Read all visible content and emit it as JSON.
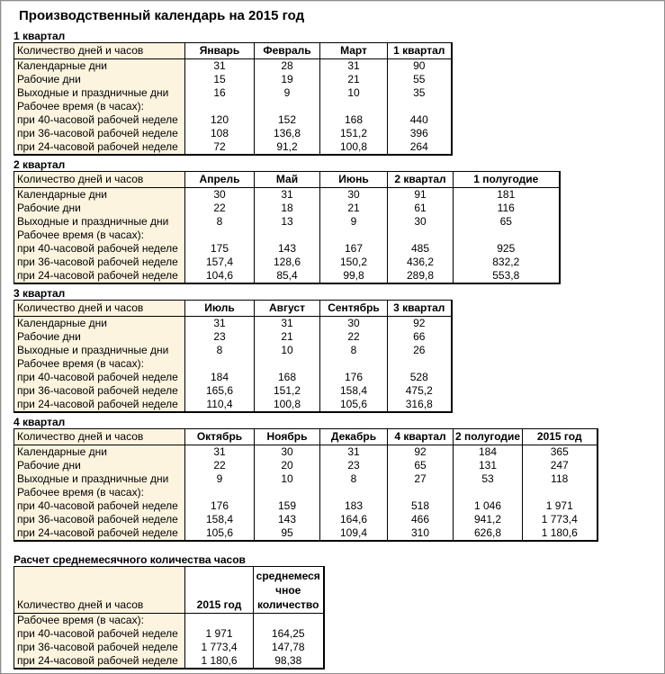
{
  "page_title": "Производственный календарь на 2015 год",
  "colors": {
    "page_background": "#FFFFFF",
    "label_column_background": "#FCF4DF",
    "table_border": "#000000",
    "frame_border": "#8F8F8F",
    "text": "#000000"
  },
  "tables": [
    {
      "section": "1 квартал",
      "label_header": "Количество дней и часов",
      "columns": [
        "Январь",
        "Февраль",
        "Март",
        "1 квартал"
      ],
      "rows": [
        {
          "label": "Календарные дни",
          "values": [
            "31",
            "28",
            "31",
            "90"
          ]
        },
        {
          "label": "Рабочие дни",
          "values": [
            "15",
            "19",
            "21",
            "55"
          ]
        },
        {
          "label": "Выходные и праздничные дни",
          "values": [
            "16",
            "9",
            "10",
            "35"
          ]
        },
        {
          "label": "Рабочее время (в часах):",
          "values": [
            "",
            "",
            "",
            ""
          ]
        },
        {
          "label": "при 40-часовой рабочей неделе",
          "values": [
            "120",
            "152",
            "168",
            "440"
          ]
        },
        {
          "label": "при 36-часовой рабочей неделе",
          "values": [
            "108",
            "136,8",
            "151,2",
            "396"
          ]
        },
        {
          "label": "при 24-часовой рабочей неделе",
          "values": [
            "72",
            "91,2",
            "100,8",
            "264"
          ]
        }
      ]
    },
    {
      "section": "2 квартал",
      "label_header": "Количество дней и часов",
      "columns": [
        "Апрель",
        "Май",
        "Июнь",
        "2 квартал",
        "1 полугодие"
      ],
      "rows": [
        {
          "label": "Календарные дни",
          "values": [
            "30",
            "31",
            "30",
            "91",
            "181"
          ]
        },
        {
          "label": "Рабочие дни",
          "values": [
            "22",
            "18",
            "21",
            "61",
            "116"
          ]
        },
        {
          "label": "Выходные и праздничные дни",
          "values": [
            "8",
            "13",
            "9",
            "30",
            "65"
          ]
        },
        {
          "label": "Рабочее время (в часах):",
          "values": [
            "",
            "",
            "",
            "",
            ""
          ]
        },
        {
          "label": "при 40-часовой рабочей неделе",
          "values": [
            "175",
            "143",
            "167",
            "485",
            "925"
          ]
        },
        {
          "label": "при 36-часовой рабочей неделе",
          "values": [
            "157,4",
            "128,6",
            "150,2",
            "436,2",
            "832,2"
          ]
        },
        {
          "label": "при 24-часовой рабочей неделе",
          "values": [
            "104,6",
            "85,4",
            "99,8",
            "289,8",
            "553,8"
          ]
        }
      ]
    },
    {
      "section": "3 квартал",
      "label_header": "Количество дней и часов",
      "columns": [
        "Июль",
        "Август",
        "Сентябрь",
        "3 квартал"
      ],
      "rows": [
        {
          "label": "Календарные дни",
          "values": [
            "31",
            "31",
            "30",
            "92"
          ]
        },
        {
          "label": "Рабочие дни",
          "values": [
            "23",
            "21",
            "22",
            "66"
          ]
        },
        {
          "label": "Выходные и праздничные дни",
          "values": [
            "8",
            "10",
            "8",
            "26"
          ]
        },
        {
          "label": "Рабочее время (в часах):",
          "values": [
            "",
            "",
            "",
            ""
          ]
        },
        {
          "label": "при 40-часовой рабочей неделе",
          "values": [
            "184",
            "168",
            "176",
            "528"
          ]
        },
        {
          "label": "при 36-часовой рабочей неделе",
          "values": [
            "165,6",
            "151,2",
            "158,4",
            "475,2"
          ]
        },
        {
          "label": "при 24-часовой рабочей неделе",
          "values": [
            "110,4",
            "100,8",
            "105,6",
            "316,8"
          ]
        }
      ]
    },
    {
      "section": "4 квартал",
      "label_header": "Количество дней и часов",
      "columns": [
        "Октябрь",
        "Ноябрь",
        "Декабрь",
        "4 квартал",
        "2 полугодие",
        "2015 год"
      ],
      "rows": [
        {
          "label": "Календарные дни",
          "values": [
            "31",
            "30",
            "31",
            "92",
            "184",
            "365"
          ]
        },
        {
          "label": "Рабочие дни",
          "values": [
            "22",
            "20",
            "23",
            "65",
            "131",
            "247"
          ]
        },
        {
          "label": "Выходные и праздничные дни",
          "values": [
            "9",
            "10",
            "8",
            "27",
            "53",
            "118"
          ]
        },
        {
          "label": "Рабочее время (в часах):",
          "values": [
            "",
            "",
            "",
            "",
            "",
            ""
          ]
        },
        {
          "label": "при 40-часовой рабочей неделе",
          "values": [
            "176",
            "159",
            "183",
            "518",
            "1 046",
            "1 971"
          ]
        },
        {
          "label": "при 36-часовой рабочей неделе",
          "values": [
            "158,4",
            "143",
            "164,6",
            "466",
            "941,2",
            "1 773,4"
          ]
        },
        {
          "label": "при 24-часовой рабочей неделе",
          "values": [
            "105,6",
            "95",
            "109,4",
            "310",
            "626,8",
            "1 180,6"
          ]
        }
      ]
    },
    {
      "section": "Расчет среднемесячного количества часов",
      "label_header": "Количество дней и часов",
      "columns": [
        "2015 год",
        "среднемеся\nчное\nколичество"
      ],
      "rows": [
        {
          "label": "Рабочее время (в часах):",
          "values": [
            "",
            ""
          ]
        },
        {
          "label": "при 40-часовой рабочей неделе",
          "values": [
            "1 971",
            "164,25"
          ]
        },
        {
          "label": "при 36-часовой рабочей неделе",
          "values": [
            "1 773,4",
            "147,78"
          ]
        },
        {
          "label": "при 24-часовой рабочей неделе",
          "values": [
            "1 180,6",
            "98,38"
          ]
        }
      ]
    }
  ]
}
